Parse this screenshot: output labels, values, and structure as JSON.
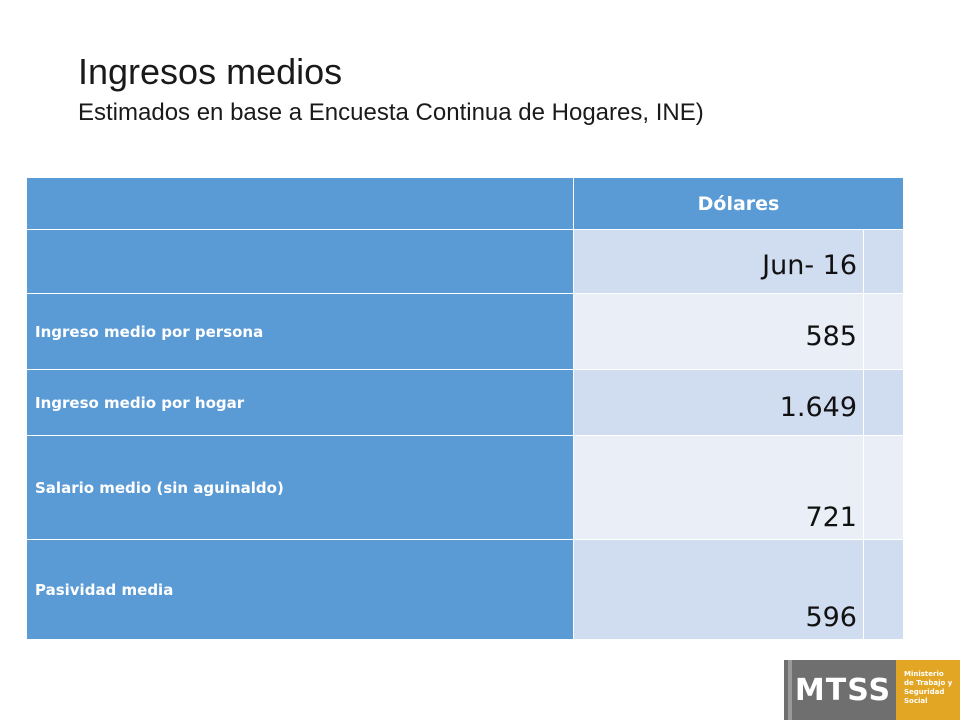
{
  "slide": {
    "title": "Ingresos medios",
    "subtitle": "Estimados en base a Encuesta Continua de Hogares, INE)"
  },
  "table": {
    "header_currency": "Dólares",
    "period": "Jun- 16",
    "rows": [
      {
        "label": "Ingreso medio por persona",
        "value": "585"
      },
      {
        "label": "Ingreso medio por hogar",
        "value": "1.649"
      },
      {
        "label": "Salario medio (sin aguinaldo)",
        "value": "721"
      },
      {
        "label": "Pasividad media",
        "value": "596"
      }
    ]
  },
  "logo": {
    "acronym": "MTSS",
    "line1": "Ministerio",
    "line2": "de Trabajo y",
    "line3": "Seguridad",
    "line4": "Social"
  },
  "colors": {
    "header_blue": "#5b9bd5",
    "row_dark": "#d0dcef",
    "row_light": "#e9eef7",
    "logo_gray": "#6f6f6f",
    "logo_gold": "#e3a624"
  }
}
